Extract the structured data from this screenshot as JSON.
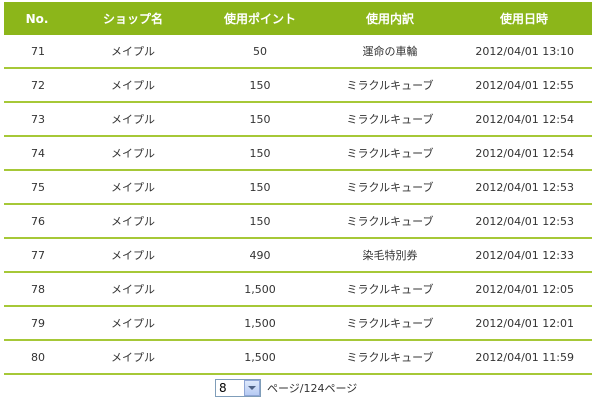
{
  "table": {
    "headers": {
      "no": "No.",
      "shop": "ショップ名",
      "points": "使用ポイント",
      "detail": "使用内訳",
      "date": "使用日時"
    },
    "rows": [
      {
        "no": "71",
        "shop": "メイプル",
        "points": "50",
        "detail": "運命の車輪",
        "date": "2012/04/01 13:10"
      },
      {
        "no": "72",
        "shop": "メイプル",
        "points": "150",
        "detail": "ミラクルキューブ",
        "date": "2012/04/01 12:55"
      },
      {
        "no": "73",
        "shop": "メイプル",
        "points": "150",
        "detail": "ミラクルキューブ",
        "date": "2012/04/01 12:54"
      },
      {
        "no": "74",
        "shop": "メイプル",
        "points": "150",
        "detail": "ミラクルキューブ",
        "date": "2012/04/01 12:54"
      },
      {
        "no": "75",
        "shop": "メイプル",
        "points": "150",
        "detail": "ミラクルキューブ",
        "date": "2012/04/01 12:53"
      },
      {
        "no": "76",
        "shop": "メイプル",
        "points": "150",
        "detail": "ミラクルキューブ",
        "date": "2012/04/01 12:53"
      },
      {
        "no": "77",
        "shop": "メイプル",
        "points": "490",
        "detail": "染毛特別券",
        "date": "2012/04/01 12:33"
      },
      {
        "no": "78",
        "shop": "メイプル",
        "points": "1,500",
        "detail": "ミラクルキューブ",
        "date": "2012/04/01 12:05"
      },
      {
        "no": "79",
        "shop": "メイプル",
        "points": "1,500",
        "detail": "ミラクルキューブ",
        "date": "2012/04/01 12:01"
      },
      {
        "no": "80",
        "shop": "メイプル",
        "points": "1,500",
        "detail": "ミラクルキューブ",
        "date": "2012/04/01 11:59"
      }
    ]
  },
  "pager": {
    "selected_page": "8",
    "suffix": "ページ/124ページ",
    "icon": "chevron-down-icon"
  },
  "colors": {
    "header_bg": "#8cb61a",
    "row_divider": "#a6c837"
  }
}
